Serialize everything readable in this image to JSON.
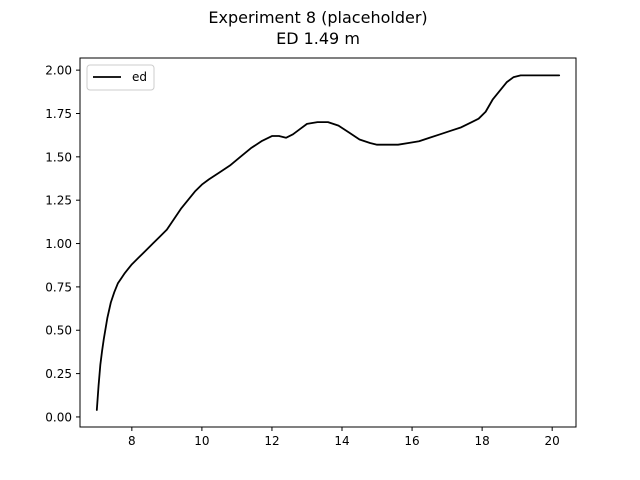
{
  "chart_data": {
    "type": "line",
    "title": "Experiment 8 (placeholder)",
    "subtitle": "ED 1.49 m",
    "xlabel": "",
    "ylabel": "",
    "xlim": [
      6.52,
      20.68
    ],
    "ylim": [
      -0.058,
      2.07
    ],
    "xticks": [
      8,
      10,
      12,
      14,
      16,
      18,
      20
    ],
    "yticks": [
      0.0,
      0.25,
      0.5,
      0.75,
      1.0,
      1.25,
      1.5,
      1.75,
      2.0
    ],
    "ytick_labels": [
      "0.00",
      "0.25",
      "0.50",
      "0.75",
      "1.00",
      "1.25",
      "1.50",
      "1.75",
      "2.00"
    ],
    "grid": false,
    "legend": "top-left",
    "series": [
      {
        "name": "ed",
        "color": "#000000",
        "x": [
          7.0,
          7.05,
          7.1,
          7.15,
          7.2,
          7.3,
          7.4,
          7.5,
          7.6,
          7.7,
          7.8,
          8.0,
          8.2,
          8.4,
          8.6,
          8.8,
          9.0,
          9.2,
          9.4,
          9.6,
          9.8,
          10.0,
          10.2,
          10.5,
          10.8,
          11.1,
          11.4,
          11.7,
          12.0,
          12.2,
          12.4,
          12.6,
          12.8,
          13.0,
          13.3,
          13.6,
          13.9,
          14.2,
          14.5,
          14.8,
          15.0,
          15.3,
          15.6,
          15.9,
          16.2,
          16.5,
          16.8,
          17.1,
          17.4,
          17.7,
          17.9,
          18.1,
          18.3,
          18.5,
          18.7,
          18.9,
          19.1,
          19.3,
          19.6,
          19.9,
          20.1,
          20.2
        ],
        "y": [
          0.04,
          0.18,
          0.3,
          0.38,
          0.45,
          0.57,
          0.66,
          0.72,
          0.77,
          0.8,
          0.83,
          0.88,
          0.92,
          0.96,
          1.0,
          1.04,
          1.08,
          1.14,
          1.2,
          1.25,
          1.3,
          1.34,
          1.37,
          1.41,
          1.45,
          1.5,
          1.55,
          1.59,
          1.62,
          1.62,
          1.61,
          1.63,
          1.66,
          1.69,
          1.7,
          1.7,
          1.68,
          1.64,
          1.6,
          1.58,
          1.57,
          1.57,
          1.57,
          1.58,
          1.59,
          1.61,
          1.63,
          1.65,
          1.67,
          1.7,
          1.72,
          1.76,
          1.83,
          1.88,
          1.93,
          1.96,
          1.97,
          1.97,
          1.97,
          1.97,
          1.97,
          1.97
        ]
      }
    ]
  }
}
